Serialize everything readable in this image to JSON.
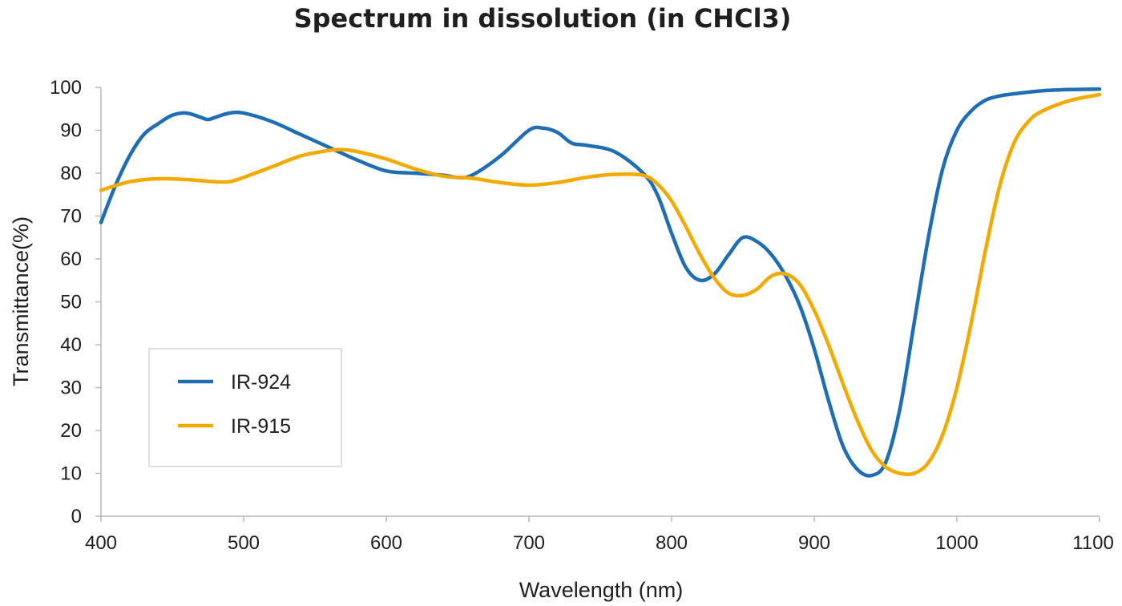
{
  "chart_data": {
    "type": "line",
    "title": "Spectrum in dissolution (in CHCl3)",
    "xlabel": "Wavelength (nm)",
    "ylabel": "Transmittance(%)",
    "xlim": [
      400,
      1100
    ],
    "ylim": [
      0,
      100
    ],
    "xticks": [
      400,
      500,
      600,
      700,
      800,
      900,
      1000,
      1100
    ],
    "yticks": [
      0,
      10,
      20,
      30,
      40,
      50,
      60,
      70,
      80,
      90,
      100
    ],
    "grid": false,
    "legend_position": "center-left",
    "series": [
      {
        "name": "IR-924",
        "color": "#1f6db3",
        "x": [
          400,
          410,
          420,
          430,
          440,
          450,
          460,
          470,
          475,
          480,
          490,
          500,
          520,
          540,
          560,
          580,
          600,
          620,
          640,
          650,
          660,
          680,
          700,
          710,
          720,
          730,
          740,
          760,
          780,
          790,
          800,
          810,
          820,
          830,
          840,
          850,
          860,
          870,
          880,
          890,
          900,
          910,
          920,
          930,
          940,
          950,
          960,
          970,
          980,
          990,
          1000,
          1010,
          1020,
          1030,
          1040,
          1060,
          1080,
          1100
        ],
        "y": [
          68.5,
          77,
          84,
          89,
          91.5,
          93.5,
          94,
          93,
          92.5,
          93,
          94,
          94,
          92,
          89,
          86,
          83,
          80.5,
          80,
          79.5,
          79,
          79.5,
          84,
          90,
          90.5,
          89.5,
          87,
          86.5,
          85,
          80,
          75,
          66,
          58,
          55,
          56.5,
          61,
          65,
          64,
          61,
          56,
          49,
          39,
          27,
          16.5,
          11,
          9.5,
          12.5,
          25,
          45,
          65,
          81,
          90,
          94.5,
          97,
          98,
          98.5,
          99.2,
          99.5,
          99.6
        ],
        "values": [
          68.5,
          77,
          84,
          89,
          91.5,
          93.5,
          94,
          93,
          92.5,
          93,
          94,
          94,
          92,
          89,
          86,
          83,
          80.5,
          80,
          79.5,
          79,
          79.5,
          84,
          90,
          90.5,
          89.5,
          87,
          86.5,
          85,
          80,
          75,
          66,
          58,
          55,
          56.5,
          61,
          65,
          64,
          61,
          56,
          49,
          39,
          27,
          16.5,
          11,
          9.5,
          12.5,
          25,
          45,
          65,
          81,
          90,
          94.5,
          97,
          98,
          98.5,
          99.2,
          99.5,
          99.6
        ]
      },
      {
        "name": "IR-915",
        "color": "#f2a900",
        "x": [
          400,
          420,
          440,
          460,
          480,
          490,
          500,
          520,
          540,
          560,
          570,
          580,
          600,
          620,
          640,
          660,
          680,
          700,
          720,
          740,
          760,
          780,
          790,
          800,
          810,
          820,
          830,
          840,
          850,
          860,
          870,
          880,
          890,
          900,
          910,
          920,
          930,
          940,
          950,
          960,
          970,
          980,
          990,
          1000,
          1010,
          1020,
          1030,
          1040,
          1050,
          1060,
          1080,
          1100
        ],
        "y": [
          76,
          78,
          78.7,
          78.5,
          78,
          78,
          79,
          81.5,
          84,
          85.3,
          85.5,
          85,
          83.3,
          81,
          79.3,
          78.8,
          77.8,
          77.2,
          77.8,
          79,
          79.7,
          79.5,
          77.5,
          73.5,
          67.5,
          61,
          55.5,
          52,
          51.5,
          53,
          56,
          56.5,
          54,
          48,
          40,
          31,
          22.5,
          15.5,
          11.5,
          10,
          10,
          12.5,
          19,
          30,
          45,
          62,
          77,
          87,
          92,
          94.5,
          97,
          98.3
        ],
        "values": [
          76,
          78,
          78.7,
          78.5,
          78,
          78,
          79,
          81.5,
          84,
          85.3,
          85.5,
          85,
          83.3,
          81,
          79.3,
          78.8,
          77.8,
          77.2,
          77.8,
          79,
          79.7,
          79.5,
          77.5,
          73.5,
          67.5,
          61,
          55.5,
          52,
          51.5,
          53,
          56,
          56.5,
          54,
          48,
          40,
          31,
          22.5,
          15.5,
          11.5,
          10,
          10,
          12.5,
          19,
          30,
          45,
          62,
          77,
          87,
          92,
          94.5,
          97,
          98.3
        ]
      }
    ]
  }
}
